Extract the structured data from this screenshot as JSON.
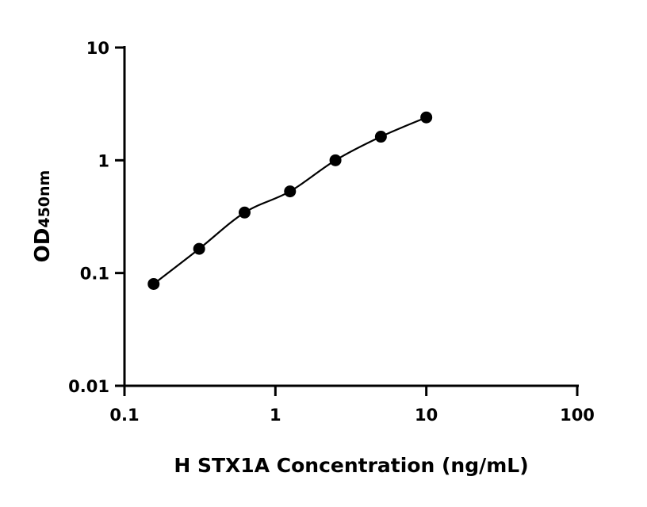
{
  "chart_data": {
    "type": "scatter",
    "title": "",
    "xlabel": "H STX1A Concentration (ng/mL)",
    "ylabel": "OD",
    "ylabel_subscript": "450nm",
    "x_scale": "log",
    "y_scale": "log",
    "xlim": [
      0.1,
      100
    ],
    "ylim": [
      0.01,
      10
    ],
    "x_ticks": [
      0.1,
      1,
      10,
      100
    ],
    "x_tick_labels": [
      "0.1",
      "1",
      "10",
      "100"
    ],
    "y_ticks": [
      0.01,
      0.1,
      1,
      10
    ],
    "y_tick_labels": [
      "0.01",
      "0.1",
      "1",
      "10"
    ],
    "grid": false,
    "fit_curve": true,
    "colors": {
      "points": "#000000",
      "curve": "#000000"
    },
    "series": [
      {
        "x": [
          0.156,
          0.3125,
          0.625,
          1.25,
          2.5,
          5,
          10
        ],
        "y": [
          0.08,
          0.164,
          0.344,
          0.53,
          1.0,
          1.62,
          2.4
        ]
      }
    ]
  }
}
